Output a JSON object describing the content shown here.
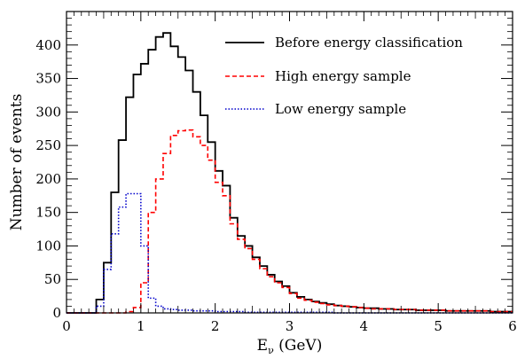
{
  "chart_data": {
    "type": "line",
    "style": "step",
    "title": "",
    "xlabel": "E",
    "xlabel_subscript": "ν",
    "xlabel_unit": " (GeV)",
    "ylabel": "Number of events",
    "xlim": [
      0,
      6
    ],
    "ylim": [
      0,
      450
    ],
    "xticks": [
      "0",
      "1",
      "2",
      "3",
      "4",
      "5",
      "6"
    ],
    "yticks": [
      "0",
      "50",
      "100",
      "150",
      "200",
      "250",
      "300",
      "350",
      "400"
    ],
    "grid": false,
    "legend_position": "top-right",
    "bin_width": 0.1,
    "x": [
      0.0,
      0.1,
      0.2,
      0.3,
      0.4,
      0.5,
      0.6,
      0.7,
      0.8,
      0.9,
      1.0,
      1.1,
      1.2,
      1.3,
      1.4,
      1.5,
      1.6,
      1.7,
      1.8,
      1.9,
      2.0,
      2.1,
      2.2,
      2.3,
      2.4,
      2.5,
      2.6,
      2.7,
      2.8,
      2.9,
      3.0,
      3.1,
      3.2,
      3.3,
      3.4,
      3.5,
      3.6,
      3.7,
      3.8,
      3.9,
      4.0,
      4.1,
      4.2,
      4.3,
      4.4,
      4.5,
      4.6,
      4.7,
      4.8,
      4.9,
      5.0,
      5.1,
      5.2,
      5.3,
      5.4,
      5.5,
      5.6,
      5.7,
      5.8,
      5.9
    ],
    "series": [
      {
        "name": "Before energy classification",
        "color": "#000000",
        "dash": "solid",
        "values": [
          0,
          0,
          0,
          0,
          20,
          75,
          180,
          258,
          322,
          356,
          372,
          393,
          412,
          418,
          398,
          382,
          362,
          330,
          295,
          255,
          212,
          190,
          142,
          115,
          100,
          83,
          70,
          57,
          47,
          40,
          30,
          24,
          20,
          17,
          15,
          13,
          11,
          10,
          9,
          8,
          7,
          7,
          6,
          6,
          5,
          5,
          5,
          4,
          4,
          4,
          4,
          3,
          3,
          3,
          3,
          3,
          3,
          2,
          2,
          2
        ]
      },
      {
        "name": "High energy sample",
        "color": "#ff0000",
        "dash": "dashed",
        "values": [
          0,
          0,
          0,
          0,
          0,
          0,
          0,
          0,
          2,
          8,
          45,
          150,
          200,
          238,
          265,
          272,
          273,
          263,
          250,
          228,
          195,
          175,
          133,
          110,
          96,
          80,
          66,
          54,
          45,
          38,
          29,
          22,
          19,
          16,
          14,
          12,
          11,
          10,
          9,
          8,
          7,
          6,
          6,
          6,
          5,
          5,
          5,
          4,
          4,
          4,
          4,
          3,
          3,
          3,
          3,
          3,
          3,
          2,
          2,
          2
        ]
      },
      {
        "name": "Low energy sample",
        "color": "#0000cc",
        "dash": "dotted",
        "values": [
          0,
          0,
          0,
          0,
          10,
          65,
          118,
          158,
          178,
          178,
          100,
          22,
          10,
          6,
          5,
          4,
          4,
          3,
          3,
          3,
          2,
          2,
          2,
          2,
          1,
          1,
          1,
          1,
          1,
          1,
          1,
          1,
          1,
          1,
          1,
          1,
          0,
          0,
          0,
          0,
          0,
          0,
          0,
          0,
          0,
          0,
          0,
          0,
          0,
          0,
          0,
          0,
          0,
          0,
          0,
          0,
          0,
          0,
          0,
          0
        ]
      }
    ]
  }
}
